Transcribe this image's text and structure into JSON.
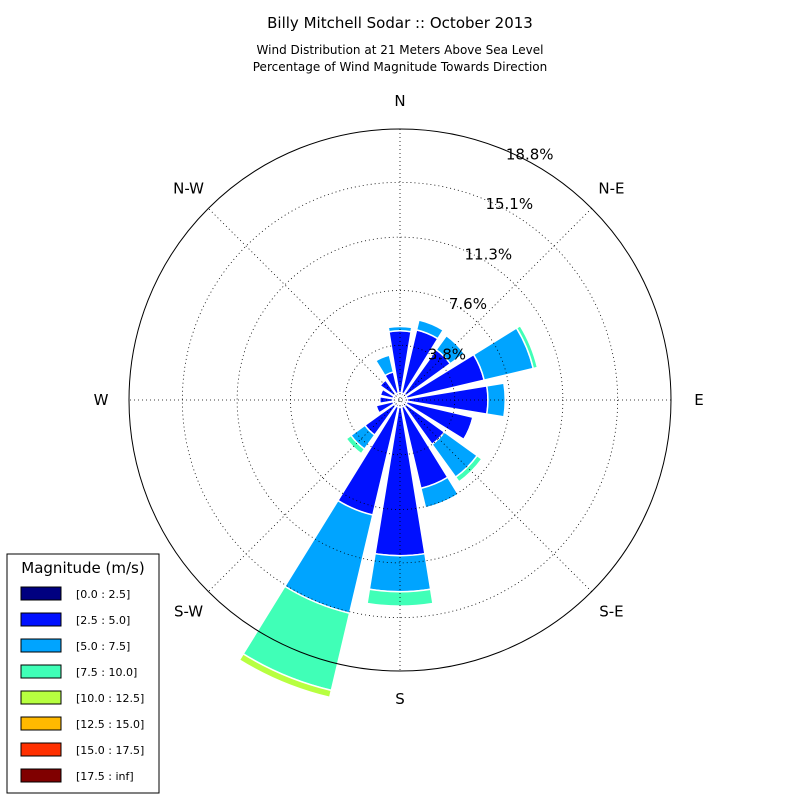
{
  "chart_data": {
    "type": "windrose",
    "title": "Billy Mitchell Sodar :: October 2013",
    "subtitle_lines": [
      "Wind Distribution at 21 Meters Above Sea Level",
      "Percentage of Wind Magnitude Towards Direction"
    ],
    "direction_labels": {
      "N": "N",
      "NE": "N-E",
      "E": "E",
      "SE": "S-E",
      "S": "S",
      "SW": "S-W",
      "W": "W",
      "NW": "N-W"
    },
    "radial_ticks": [
      {
        "value": 3.8,
        "label": "3.8%"
      },
      {
        "value": 7.6,
        "label": "7.6%"
      },
      {
        "value": 11.3,
        "label": "11.3%"
      },
      {
        "value": 15.1,
        "label": "15.1%"
      },
      {
        "value": 18.8,
        "label": "18.8%"
      }
    ],
    "r_max": 18.8,
    "unit": "percent",
    "legend": {
      "title": "Magnitude (m/s)",
      "placement": "bottom-left",
      "entries": [
        {
          "label": "[0.0 : 2.5]",
          "color": "#000080"
        },
        {
          "label": "[2.5 : 5.0]",
          "color": "#0010ff"
        },
        {
          "label": "[5.0 : 7.5]",
          "color": "#00a4ff"
        },
        {
          "label": "[7.5 : 10.0]",
          "color": "#40ffb7"
        },
        {
          "label": "[10.0 : 12.5]",
          "color": "#b7ff40"
        },
        {
          "label": "[12.5 : 15.0]",
          "color": "#ffb900"
        },
        {
          "label": "[15.0 : 17.5]",
          "color": "#ff3000"
        },
        {
          "label": "[17.5 : inf]",
          "color": "#800000"
        }
      ]
    },
    "directions_deg": [
      0,
      22.5,
      45,
      67.5,
      90,
      112.5,
      135,
      157.5,
      180,
      202.5,
      225,
      247.5,
      270,
      292.5,
      315,
      337.5
    ],
    "series": [
      {
        "name": "[0.0 : 2.5]",
        "values": [
          0.5,
          0.5,
          0.5,
          0.5,
          0.5,
          0.5,
          0.5,
          0.5,
          0.5,
          0.5,
          0.5,
          0.5,
          0.5,
          0.5,
          0.5,
          0.5
        ]
      },
      {
        "name": "[2.5 : 5.0]",
        "values": [
          4.3,
          4.5,
          3.8,
          5.5,
          5.6,
          4.7,
          3.3,
          5.8,
          10.3,
          7.7,
          2.5,
          1.2,
          0.9,
          0.9,
          1.2,
          1.5
        ]
      },
      {
        "name": "[5.0 : 7.5]",
        "values": [
          0.3,
          0.7,
          1.2,
          3.5,
          1.2,
          0.1,
          2.8,
          1.4,
          2.5,
          7.0,
          1.2,
          0.0,
          0.0,
          0.0,
          0.0,
          1.2
        ]
      },
      {
        "name": "[7.5 : 10.0]",
        "values": [
          0.0,
          0.0,
          0.0,
          0.3,
          0.0,
          0.0,
          0.4,
          0.1,
          1.0,
          5.5,
          0.4,
          0.0,
          0.0,
          0.0,
          0.0,
          0.0
        ]
      },
      {
        "name": "[10.0 : 12.5]",
        "values": [
          0.0,
          0.0,
          0.0,
          0.0,
          0.0,
          0.0,
          0.0,
          0.0,
          0.0,
          0.5,
          0.0,
          0.0,
          0.0,
          0.0,
          0.0,
          0.0
        ]
      }
    ]
  }
}
